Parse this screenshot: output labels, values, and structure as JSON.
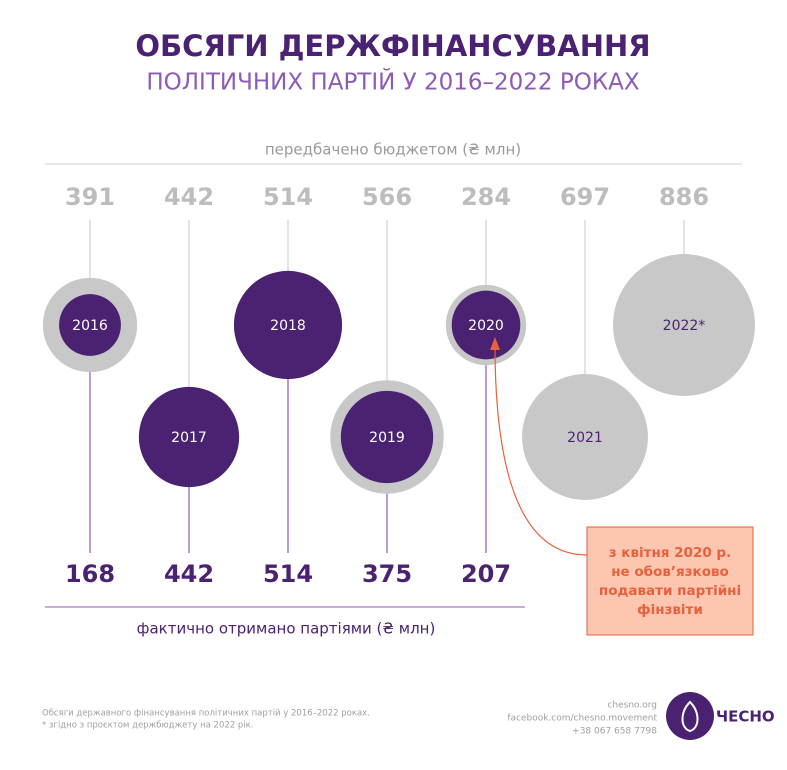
{
  "chart_data": {
    "type": "bubble",
    "title": "ОБСЯГИ ДЕРЖФІНАНСУВАННЯ",
    "subtitle": "ПОЛІТИЧНИХ ПАРТІЙ У 2016–2022 РОКАХ",
    "categories": [
      "2016",
      "2017",
      "2018",
      "2019",
      "2020",
      "2021",
      "2022*"
    ],
    "series": [
      {
        "name": "передбачено бюджетом (₴ млн)",
        "color": "#c8c8c8",
        "values": [
          391,
          442,
          514,
          566,
          284,
          697,
          886
        ]
      },
      {
        "name": "фактично отримано партіями (₴ млн)",
        "color": "#4b2271",
        "values": [
          168,
          442,
          514,
          375,
          207,
          null,
          null
        ]
      }
    ],
    "annotation": [
      "з квітня 2020 р.",
      "не обов’язково",
      "подавати партійні",
      "фінзвіти"
    ],
    "footnotes": [
      "Обсяги державного фінансування політичних партій у 2016–2022 роках.",
      "* згідно з проєктом держбюджету на 2022 рік."
    ],
    "contacts": [
      "chesno.org",
      "facebook.com/chesno.movement",
      "+38 067 658 7798"
    ],
    "logo": "ЧЕСНО"
  }
}
